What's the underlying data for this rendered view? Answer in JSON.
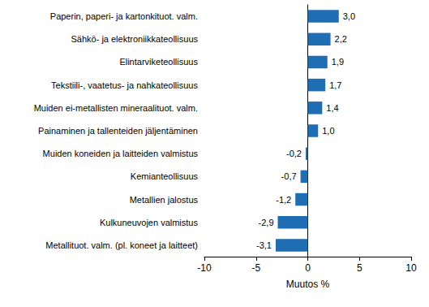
{
  "chart_data": {
    "type": "bar",
    "orientation": "horizontal",
    "x_label": "Muutos %",
    "categories": [
      "Paperin, paperi- ja kartonkituot. valm.",
      "Sähkö- ja elektroniikkateollisuus",
      "Elintarviketeollisuus",
      "Tekstiili-, vaatetus- ja nahkateollisuus",
      "Muiden ei-metallisten mineraalituot. valm.",
      "Painaminen ja tallenteiden jäljentäminen",
      "Muiden koneiden ja laitteiden valmistus",
      "Kemianteollisuus",
      "Metallien jalostus",
      "Kulkuneuvojen valmistus",
      "Metallituot. valm. (pl. koneet ja laitteet)"
    ],
    "values": [
      3.0,
      2.2,
      1.9,
      1.7,
      1.4,
      1.0,
      -0.2,
      -0.7,
      -1.2,
      -2.9,
      -3.1
    ],
    "value_labels": [
      "3,0",
      "2,2",
      "1,9",
      "1,7",
      "1,4",
      "1,0",
      "-0,2",
      "-0,7",
      "-1,2",
      "-2,9",
      "-3,1"
    ],
    "data_labels": true,
    "color": "#1f6db3",
    "xlim": [
      -10,
      10
    ],
    "xticks": [
      -10,
      -5,
      0,
      5,
      10
    ],
    "grid": false
  }
}
